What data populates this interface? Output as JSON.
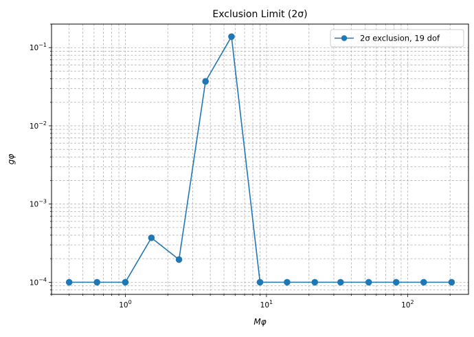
{
  "chart_data": {
    "type": "line",
    "title": "Exclusion Limit (2σ)",
    "xlabel": "Mφ",
    "ylabel": "gφ",
    "xscale": "log",
    "yscale": "log",
    "xlim": [
      0.3,
      270
    ],
    "ylim": [
      7e-05,
      0.2
    ],
    "grid": true,
    "legend_position": "upper right",
    "x_tick_labels": [
      "10^0",
      "10^1",
      "10^2"
    ],
    "y_tick_labels": [
      "10^-4",
      "10^-3",
      "10^-2",
      "10^-1"
    ],
    "series": [
      {
        "name": "2σ exclusion, 19 dof",
        "color": "#1f77b4",
        "marker": "circle",
        "x": [
          0.4,
          0.63,
          1.0,
          1.53,
          2.4,
          3.7,
          5.65,
          9.0,
          14.0,
          22.0,
          33.5,
          53.0,
          83.0,
          130.0,
          205.0
        ],
        "y": [
          0.0001,
          0.0001,
          0.0001,
          0.00037,
          0.000195,
          0.037,
          0.138,
          0.0001,
          0.0001,
          0.0001,
          0.0001,
          0.0001,
          0.0001,
          0.0001,
          0.0001
        ]
      }
    ]
  }
}
